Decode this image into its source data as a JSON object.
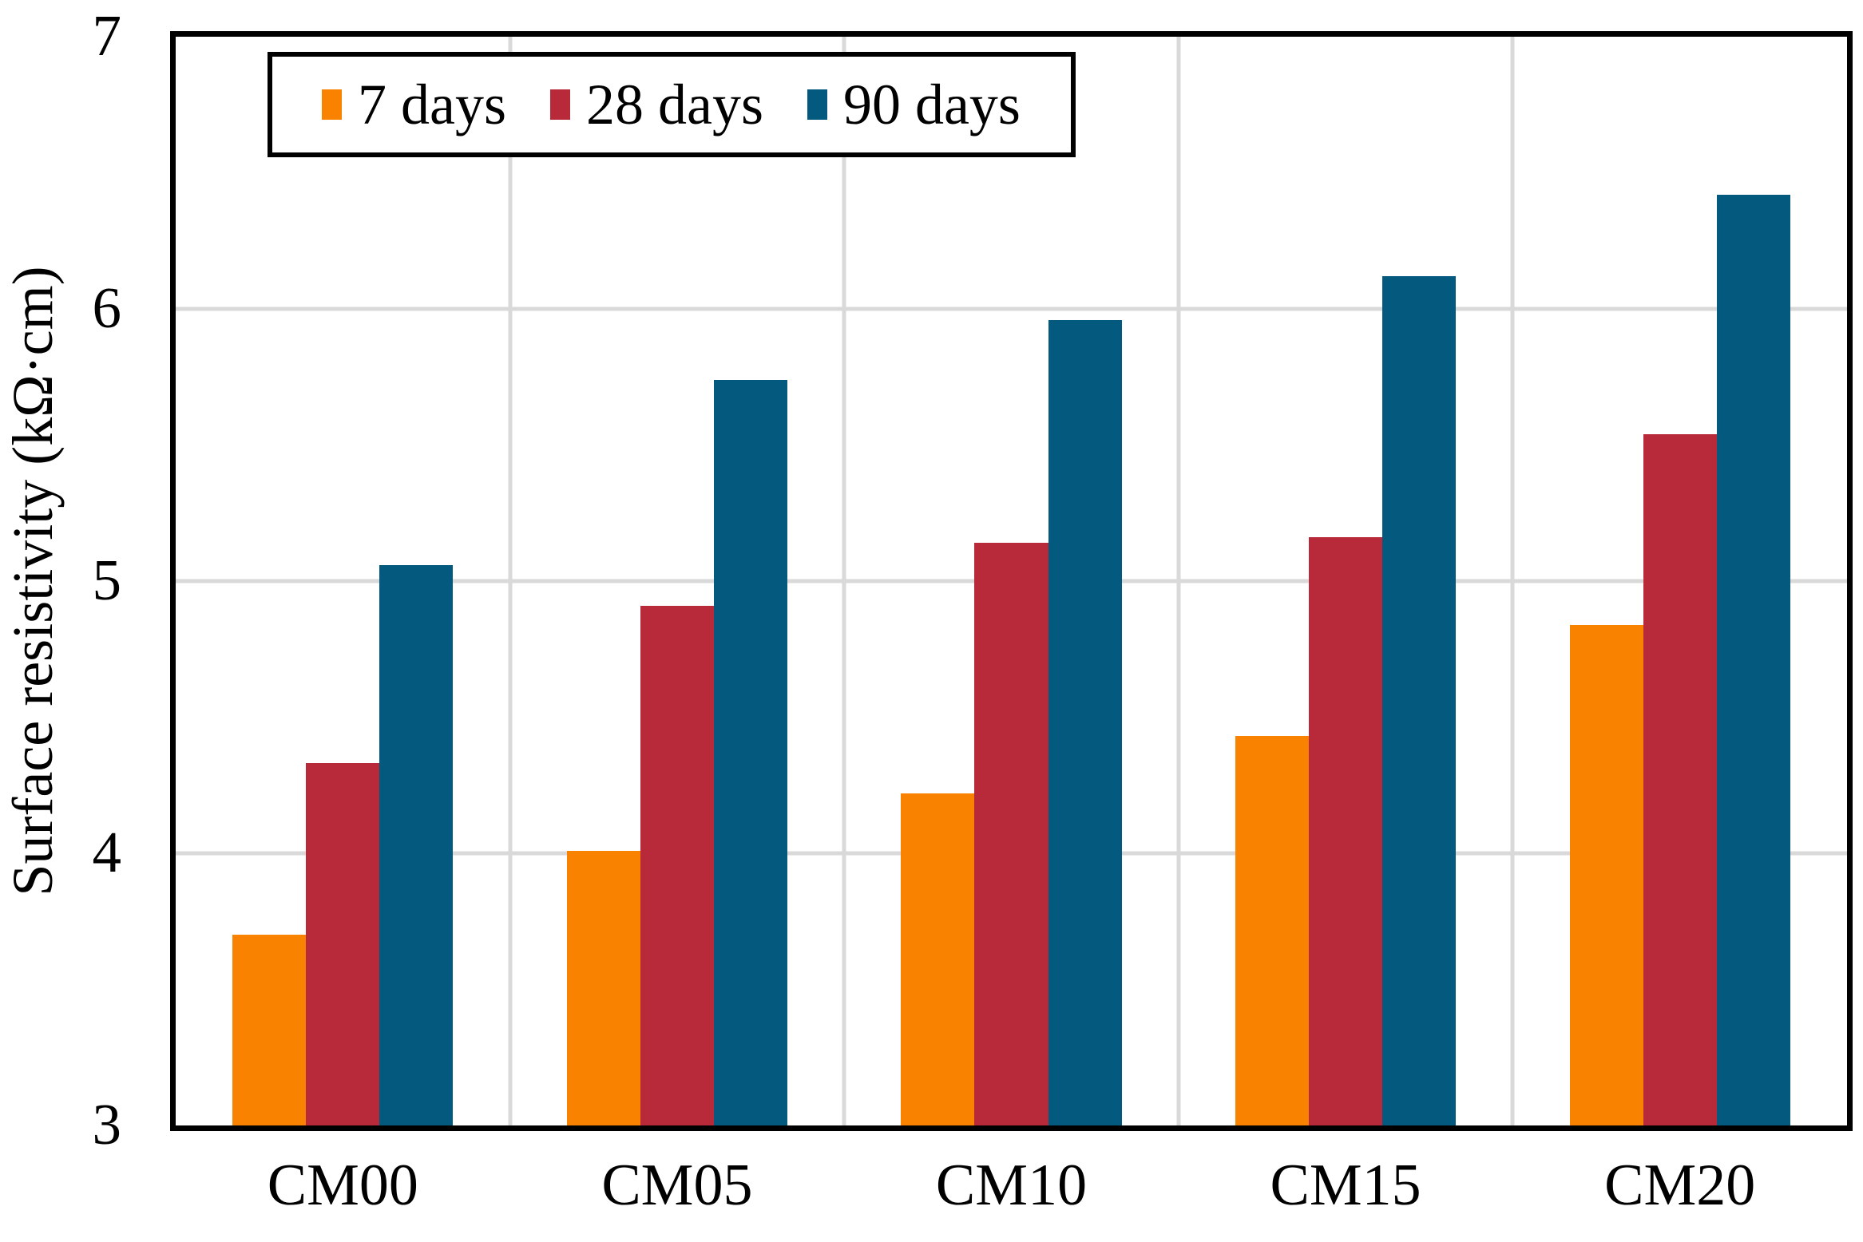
{
  "chart_data": {
    "type": "bar",
    "title": "",
    "xlabel": "",
    "ylabel": "Surface resistivity (kΩ·cm)",
    "ylim": [
      3,
      7
    ],
    "yticks": [
      3,
      4,
      5,
      6,
      7
    ],
    "grid": true,
    "grid_vertical": true,
    "legend_position": "top-left-inside",
    "categories": [
      "CM00",
      "CM05",
      "CM10",
      "CM15",
      "CM20"
    ],
    "series": [
      {
        "name": "7 days",
        "color": "#F98200",
        "values": [
          3.7,
          4.01,
          4.22,
          4.43,
          4.84
        ]
      },
      {
        "name": "28 days",
        "color": "#B8293A",
        "values": [
          4.33,
          4.91,
          5.14,
          5.16,
          5.54
        ]
      },
      {
        "name": "90 days",
        "color": "#045A7E",
        "values": [
          5.06,
          5.74,
          5.96,
          6.12,
          6.42
        ]
      }
    ],
    "colors": {
      "grid": "#D9D9D9",
      "axis_frame": "#000000",
      "background": "#FFFFFF"
    },
    "bar_layout": {
      "group_inner_fraction": 0.66,
      "bar_fraction_of_cell": 0.22,
      "side_gap_fraction": 0.17
    }
  }
}
